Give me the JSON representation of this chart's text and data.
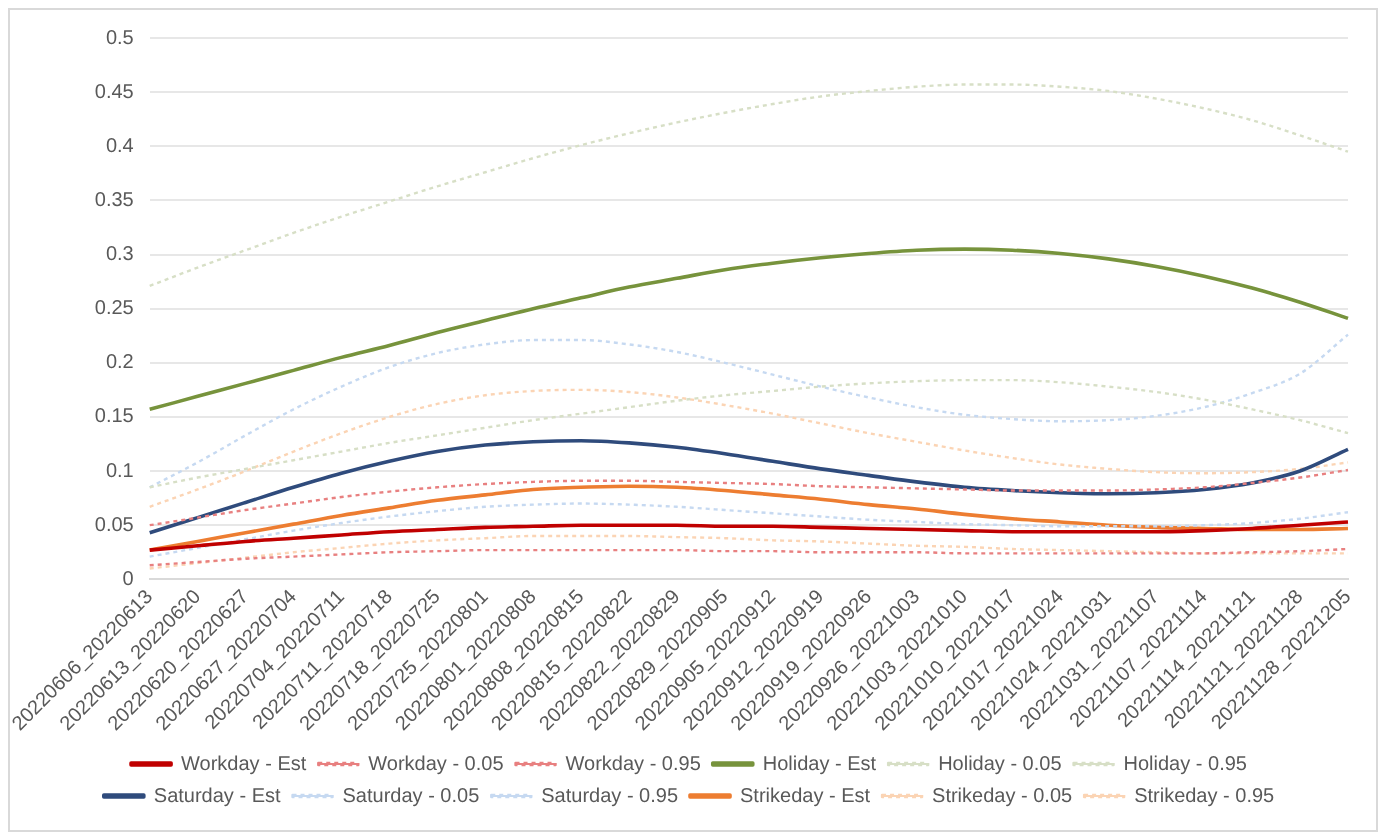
{
  "chart_data": {
    "type": "line",
    "categories": [
      "20220606_20220613",
      "20220613_20220620",
      "20220620_20220627",
      "20220627_20220704",
      "20220704_20220711",
      "20220711_20220718",
      "20220718_20220725",
      "20220725_20220801",
      "20220801_20220808",
      "20220808_20220815",
      "20220815_20220822",
      "20220822_20220829",
      "20220829_20220905",
      "20220905_20220912",
      "20220912_20220919",
      "20220919_20220926",
      "20220926_20221003",
      "20221003_20221010",
      "20221010_20221017",
      "20221017_20221024",
      "20221024_20221031",
      "20221031_20221107",
      "20221107_20221114",
      "20221114_20221121",
      "20221121_20221128",
      "20221128_20221205"
    ],
    "series": [
      {
        "name": "Workday - Est",
        "color": "#c00000",
        "line_style": "solid",
        "values": [
          0.027,
          0.031,
          0.035,
          0.038,
          0.041,
          0.044,
          0.046,
          0.048,
          0.049,
          0.05,
          0.05,
          0.05,
          0.049,
          0.049,
          0.048,
          0.047,
          0.046,
          0.045,
          0.044,
          0.044,
          0.044,
          0.044,
          0.045,
          0.047,
          0.05,
          0.053
        ]
      },
      {
        "name": "Workday - 0.05",
        "color": "#e88080",
        "line_style": "dotted",
        "values": [
          0.013,
          0.016,
          0.019,
          0.021,
          0.023,
          0.025,
          0.026,
          0.027,
          0.027,
          0.027,
          0.027,
          0.027,
          0.026,
          0.026,
          0.025,
          0.025,
          0.025,
          0.024,
          0.024,
          0.024,
          0.024,
          0.024,
          0.024,
          0.025,
          0.026,
          0.028
        ]
      },
      {
        "name": "Workday - 0.95",
        "color": "#e88080",
        "line_style": "dotted",
        "values": [
          0.05,
          0.057,
          0.064,
          0.07,
          0.076,
          0.081,
          0.085,
          0.088,
          0.09,
          0.091,
          0.091,
          0.09,
          0.089,
          0.088,
          0.086,
          0.085,
          0.084,
          0.083,
          0.082,
          0.082,
          0.082,
          0.083,
          0.085,
          0.089,
          0.094,
          0.101
        ]
      },
      {
        "name": "Holiday - Est",
        "color": "#77933c",
        "line_style": "solid",
        "values": [
          0.157,
          0.169,
          0.181,
          0.193,
          0.205,
          0.216,
          0.228,
          0.239,
          0.25,
          0.26,
          0.27,
          0.278,
          0.286,
          0.292,
          0.297,
          0.301,
          0.304,
          0.305,
          0.304,
          0.301,
          0.296,
          0.289,
          0.28,
          0.269,
          0.256,
          0.241
        ]
      },
      {
        "name": "Holiday - 0.05",
        "color": "#d7dfc6",
        "line_style": "dotted",
        "values": [
          0.085,
          0.094,
          0.102,
          0.11,
          0.118,
          0.126,
          0.133,
          0.14,
          0.147,
          0.153,
          0.159,
          0.165,
          0.17,
          0.174,
          0.178,
          0.181,
          0.183,
          0.184,
          0.184,
          0.182,
          0.178,
          0.173,
          0.166,
          0.157,
          0.147,
          0.135
        ]
      },
      {
        "name": "Holiday - 0.95",
        "color": "#d7dfc6",
        "line_style": "dotted",
        "values": [
          0.271,
          0.288,
          0.304,
          0.32,
          0.335,
          0.349,
          0.363,
          0.376,
          0.389,
          0.401,
          0.412,
          0.422,
          0.431,
          0.439,
          0.446,
          0.451,
          0.455,
          0.457,
          0.457,
          0.455,
          0.451,
          0.444,
          0.435,
          0.424,
          0.41,
          0.395
        ]
      },
      {
        "name": "Saturday - Est",
        "color": "#2f4b7c",
        "line_style": "solid",
        "values": [
          0.043,
          0.057,
          0.071,
          0.085,
          0.098,
          0.109,
          0.118,
          0.124,
          0.127,
          0.128,
          0.126,
          0.122,
          0.116,
          0.109,
          0.102,
          0.096,
          0.09,
          0.085,
          0.082,
          0.08,
          0.079,
          0.08,
          0.083,
          0.089,
          0.1,
          0.12
        ]
      },
      {
        "name": "Saturday - 0.05",
        "color": "#c6d9f1",
        "line_style": "dotted",
        "values": [
          0.021,
          0.029,
          0.037,
          0.045,
          0.052,
          0.058,
          0.063,
          0.067,
          0.069,
          0.07,
          0.069,
          0.067,
          0.064,
          0.061,
          0.058,
          0.055,
          0.053,
          0.051,
          0.05,
          0.049,
          0.049,
          0.049,
          0.05,
          0.052,
          0.056,
          0.062
        ]
      },
      {
        "name": "Saturday - 0.95",
        "color": "#c6d9f1",
        "line_style": "dotted",
        "values": [
          0.085,
          0.108,
          0.133,
          0.157,
          0.178,
          0.196,
          0.209,
          0.217,
          0.221,
          0.221,
          0.217,
          0.21,
          0.2,
          0.189,
          0.178,
          0.168,
          0.159,
          0.152,
          0.148,
          0.146,
          0.147,
          0.151,
          0.159,
          0.172,
          0.19,
          0.226
        ]
      },
      {
        "name": "Strikeday - Est",
        "color": "#ed7d31",
        "line_style": "solid",
        "values": [
          0.027,
          0.035,
          0.043,
          0.051,
          0.059,
          0.066,
          0.073,
          0.078,
          0.083,
          0.085,
          0.086,
          0.085,
          0.082,
          0.078,
          0.074,
          0.069,
          0.065,
          0.06,
          0.056,
          0.053,
          0.05,
          0.048,
          0.047,
          0.046,
          0.046,
          0.047
        ]
      },
      {
        "name": "Strikeday - 0.05",
        "color": "#fbd4b4",
        "line_style": "dotted",
        "values": [
          0.01,
          0.015,
          0.02,
          0.025,
          0.029,
          0.033,
          0.036,
          0.038,
          0.04,
          0.04,
          0.04,
          0.039,
          0.038,
          0.036,
          0.035,
          0.033,
          0.031,
          0.03,
          0.028,
          0.027,
          0.026,
          0.025,
          0.024,
          0.024,
          0.024,
          0.024
        ]
      },
      {
        "name": "Strikeday - 0.95",
        "color": "#fbd4b4",
        "line_style": "dotted",
        "values": [
          0.067,
          0.083,
          0.1,
          0.118,
          0.135,
          0.15,
          0.162,
          0.17,
          0.174,
          0.175,
          0.173,
          0.168,
          0.161,
          0.153,
          0.144,
          0.135,
          0.127,
          0.119,
          0.112,
          0.106,
          0.102,
          0.099,
          0.098,
          0.099,
          0.102,
          0.108
        ]
      }
    ],
    "ylim": [
      0,
      0.5
    ],
    "yticks": [
      0,
      0.05,
      0.1,
      0.15,
      0.2,
      0.25,
      0.3,
      0.35,
      0.4,
      0.45,
      0.5
    ],
    "grid": "y",
    "legend": "bottom",
    "marker": "none"
  }
}
